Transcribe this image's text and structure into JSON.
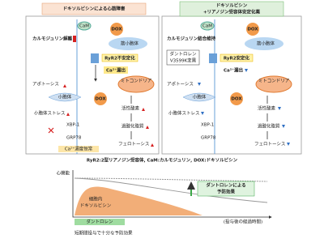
{
  "left_panel": {
    "title": "ドキソルビシンによる心筋障害",
    "labels": {
      "cam": "CaM",
      "dox_top": "DOX",
      "cam_dissociation": "カルモジュリン解離",
      "sr": "筋小胞体",
      "ryr2": "RyR2不安定化",
      "ca_leak": "Ca²⁺漏出",
      "mito": "ミトコンドリア",
      "apoptosis": "アポトーシス",
      "er": "小胞体",
      "dox_mid": "DOX",
      "er_stress": "小胞体ストレス",
      "xbp1": "XBP-1",
      "grp78": "GRP78",
      "ca_homeostasis": "Ca²⁺濃度恒常",
      "ros": "活性酸素",
      "lipid": "過酸化脂質",
      "ferroptosis": "フェロトーシス"
    }
  },
  "right_panel": {
    "title": [
      "ドキソルビシン",
      "+リアノジン受容体安定化薬"
    ],
    "labels": {
      "cam": "CaM",
      "dox_top": "DOX",
      "cam_binding": "カルモジュリン結合維持",
      "dantrolene": "ダントロレン",
      "mutation": "V3599K変異",
      "sr": "筋小胞体",
      "ryr2": "RyR2安定化",
      "ca_leak": "Ca²⁺漏出",
      "mito": "ミトコンドリア",
      "apoptosis": "アポトーシス",
      "er": "小胞体",
      "dox_mid": "DOX",
      "er_stress": "小胞体ストレス",
      "xbp1": "XBP-1",
      "grp78": "GRP78",
      "ros": "活性酸素",
      "lipid": "過酸化脂質",
      "ferroptosis": "フェロトーシス"
    }
  },
  "caption": "RyR2:2型リアノジン受容体, CaM:カルモジュリン, DOX:ドキソルビシン",
  "bottom_graph": {
    "y_label": "心機能",
    "effect": [
      "ダントロレンによる",
      "予防効果"
    ],
    "intracellular": [
      "細胞内",
      "ドキソルビシン"
    ],
    "drug_bar": "ダントロレン",
    "x_label": "(投与後の経過時間)",
    "note": "短期間投与で十分な予防効果"
  }
}
